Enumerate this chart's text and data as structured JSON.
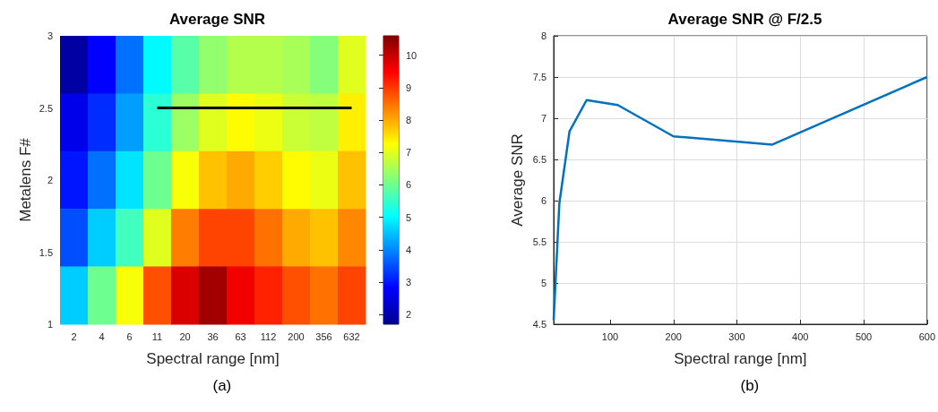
{
  "chart_data": [
    {
      "type": "heatmap",
      "title": "Average SNR",
      "xlabel": "Spectral range [nm]",
      "ylabel": "Metalens F#",
      "categories": [
        "2",
        "4",
        "6",
        "11",
        "20",
        "36",
        "63",
        "112",
        "200",
        "356",
        "632"
      ],
      "ylim": [
        1,
        3
      ],
      "yticks": [
        1,
        1.5,
        2,
        2.5,
        3
      ],
      "cells": [
        [
          1.9,
          2.8,
          3.8,
          5.0,
          5.8,
          6.3,
          6.6,
          6.6,
          6.5,
          6.2,
          7.0
        ],
        [
          2.6,
          3.2,
          4.2,
          5.4,
          6.4,
          7.0,
          7.3,
          7.1,
          6.8,
          6.7,
          7.4
        ],
        [
          3.0,
          3.8,
          4.8,
          6.0,
          7.2,
          7.8,
          8.0,
          7.7,
          7.3,
          7.1,
          7.8
        ],
        [
          3.5,
          4.6,
          5.6,
          7.0,
          8.4,
          8.9,
          8.9,
          8.5,
          8.0,
          7.8,
          8.3
        ],
        [
          4.6,
          6.0,
          7.2,
          8.8,
          9.8,
          10.3,
          9.6,
          9.2,
          8.8,
          8.5,
          8.9
        ]
      ],
      "clim": [
        1.7,
        10.6
      ],
      "cticks": [
        2,
        3,
        4,
        5,
        6,
        7,
        8,
        9,
        10
      ],
      "series": [
        {
          "type": "line",
          "x": [
            "11",
            "632"
          ],
          "values": [
            2.5,
            2.5
          ],
          "color": "#000000"
        }
      ],
      "annotations": [
        "(a)"
      ]
    },
    {
      "type": "line",
      "title": "Average SNR @ F/2.5",
      "xlabel": "Spectral range [nm]",
      "ylabel": "Average SNR",
      "x": [
        11,
        20,
        36,
        63,
        112,
        200,
        356,
        600
      ],
      "values": [
        4.55,
        5.97,
        6.84,
        7.22,
        7.16,
        6.78,
        6.68,
        7.5
      ],
      "color": "#0072bd",
      "xlim": [
        11,
        600
      ],
      "xticks": [
        100,
        200,
        300,
        400,
        500,
        600
      ],
      "ylim": [
        4.5,
        8
      ],
      "yticks": [
        4.5,
        5,
        5.5,
        6,
        6.5,
        7,
        7.5,
        8
      ],
      "grid": true,
      "marker": "none",
      "annotations": [
        "(b)"
      ]
    }
  ]
}
